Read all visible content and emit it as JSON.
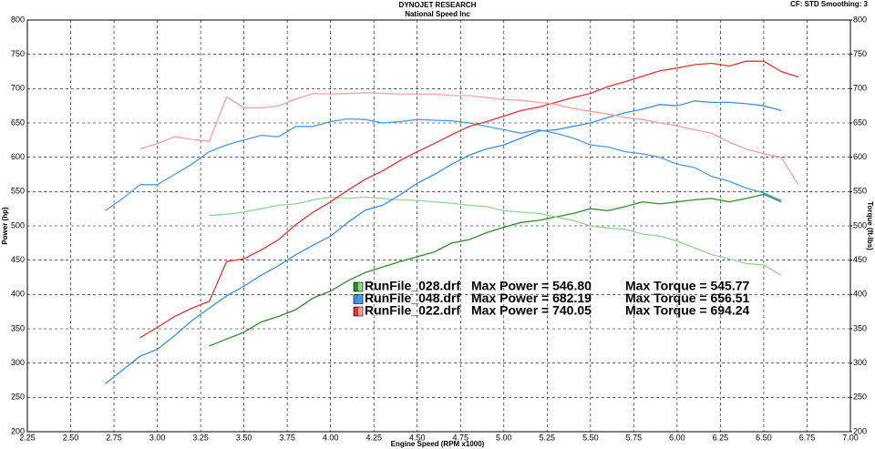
{
  "chart_data": {
    "type": "line",
    "title": "DYNOJET RESEARCH",
    "subtitle": "National Speed Inc",
    "settings_text": "CF: STD  Smoothing: 3",
    "x_label": "Engine Speed (RPM x1000)",
    "y_label": "Power (hp)",
    "y2_label": "Torque (ft-lbs)",
    "grid": true,
    "xlim": [
      2.25,
      7.0
    ],
    "xticks": [
      {
        "value": 2.25,
        "label": "2.25"
      },
      {
        "value": 2.5,
        "label": "2.50"
      },
      {
        "value": 2.75,
        "label": "2.75"
      },
      {
        "value": 3.0,
        "label": "3.00"
      },
      {
        "value": 3.25,
        "label": "3.25"
      },
      {
        "value": 3.5,
        "label": "3.50"
      },
      {
        "value": 3.75,
        "label": "3.75"
      },
      {
        "value": 4.0,
        "label": "4.00"
      },
      {
        "value": 4.25,
        "label": "4.25"
      },
      {
        "value": 4.5,
        "label": "4.50"
      },
      {
        "value": 4.75,
        "label": "4.75"
      },
      {
        "value": 5.0,
        "label": "5.00"
      },
      {
        "value": 5.25,
        "label": "5.25"
      },
      {
        "value": 5.5,
        "label": "5.50"
      },
      {
        "value": 5.75,
        "label": "5.75"
      },
      {
        "value": 6.0,
        "label": "6.00"
      },
      {
        "value": 6.25,
        "label": "6.25"
      },
      {
        "value": 6.5,
        "label": "6.50"
      },
      {
        "value": 6.75,
        "label": "6.75"
      },
      {
        "value": 7.0,
        "label": "7.00"
      }
    ],
    "ylim": [
      200,
      800
    ],
    "yticks": [
      200,
      250,
      300,
      350,
      400,
      450,
      500,
      550,
      600,
      650,
      700,
      750,
      800
    ],
    "y2lim": [
      200,
      800
    ],
    "y2ticks": [
      200,
      250,
      300,
      350,
      400,
      450,
      500,
      550,
      600,
      650,
      700,
      750,
      800
    ],
    "x": [
      2.6,
      2.7,
      2.8,
      2.9,
      3.0,
      3.1,
      3.2,
      3.3,
      3.4,
      3.5,
      3.6,
      3.7,
      3.8,
      3.9,
      4.0,
      4.1,
      4.2,
      4.3,
      4.4,
      4.5,
      4.6,
      4.7,
      4.8,
      4.9,
      5.0,
      5.1,
      5.2,
      5.3,
      5.4,
      5.5,
      5.6,
      5.7,
      5.8,
      5.9,
      6.0,
      6.1,
      6.2,
      6.3,
      6.4,
      6.5,
      6.6,
      6.7
    ],
    "legend": [
      {
        "file": "RunFile_028.drf",
        "power": "Max Power = 546.80",
        "torque": "Max Torque = 545.77"
      },
      {
        "file": "RunFile_048.drf",
        "power": "Max Power = 682.19",
        "torque": "Max Torque = 656.51"
      },
      {
        "file": "RunFile_022.drf",
        "power": "Max Power = 740.05",
        "torque": "Max Torque = 694.24"
      }
    ],
    "series": [
      {
        "color": "#2e8b2e",
        "values": [
          null,
          null,
          null,
          null,
          null,
          null,
          null,
          325,
          335,
          345,
          360,
          368,
          378,
          395,
          405,
          420,
          432,
          440,
          448,
          455,
          462,
          475,
          480,
          490,
          498,
          505,
          508,
          513,
          518,
          525,
          522,
          528,
          535,
          532,
          535,
          538,
          540,
          535,
          540,
          546,
          535,
          null
        ]
      },
      {
        "color": "#94d494",
        "axis": "y2",
        "values": [
          null,
          null,
          null,
          null,
          null,
          null,
          null,
          515,
          517,
          520,
          525,
          530,
          532,
          538,
          542,
          540,
          542,
          540,
          538,
          537,
          535,
          533,
          530,
          528,
          522,
          520,
          518,
          513,
          508,
          500,
          497,
          495,
          488,
          485,
          478,
          468,
          458,
          452,
          445,
          443,
          428,
          null
        ]
      },
      {
        "color": "#3a8fe0",
        "values": [
          null,
          270,
          290,
          310,
          320,
          340,
          362,
          380,
          398,
          412,
          428,
          442,
          458,
          472,
          485,
          505,
          523,
          530,
          545,
          562,
          575,
          590,
          603,
          612,
          618,
          628,
          638,
          640,
          645,
          650,
          658,
          665,
          670,
          677,
          675,
          682,
          680,
          680,
          678,
          675,
          668,
          null
        ]
      },
      {
        "color": "#4c9be8",
        "axis": "y2",
        "values": [
          null,
          522,
          540,
          560,
          560,
          575,
          590,
          608,
          618,
          625,
          632,
          630,
          645,
          645,
          652,
          656,
          655,
          650,
          652,
          655,
          654,
          653,
          650,
          645,
          640,
          635,
          640,
          635,
          628,
          618,
          615,
          608,
          605,
          600,
          590,
          585,
          572,
          565,
          555,
          548,
          537,
          null
        ]
      },
      {
        "color": "#e23434",
        "values": [
          null,
          null,
          null,
          337,
          352,
          368,
          380,
          390,
          448,
          452,
          465,
          480,
          502,
          520,
          535,
          552,
          568,
          580,
          595,
          608,
          620,
          633,
          645,
          652,
          660,
          668,
          673,
          680,
          687,
          693,
          703,
          710,
          718,
          726,
          730,
          735,
          737,
          733,
          740,
          740,
          725,
          717
        ]
      },
      {
        "color": "#f5a2a2",
        "axis": "y2",
        "values": [
          null,
          null,
          null,
          612,
          620,
          630,
          626,
          623,
          688,
          672,
          672,
          675,
          685,
          693,
          692,
          693,
          694,
          693,
          692,
          692,
          692,
          690,
          690,
          687,
          684,
          683,
          680,
          677,
          671,
          667,
          663,
          658,
          655,
          650,
          646,
          640,
          635,
          622,
          612,
          605,
          600,
          560
        ]
      }
    ]
  }
}
